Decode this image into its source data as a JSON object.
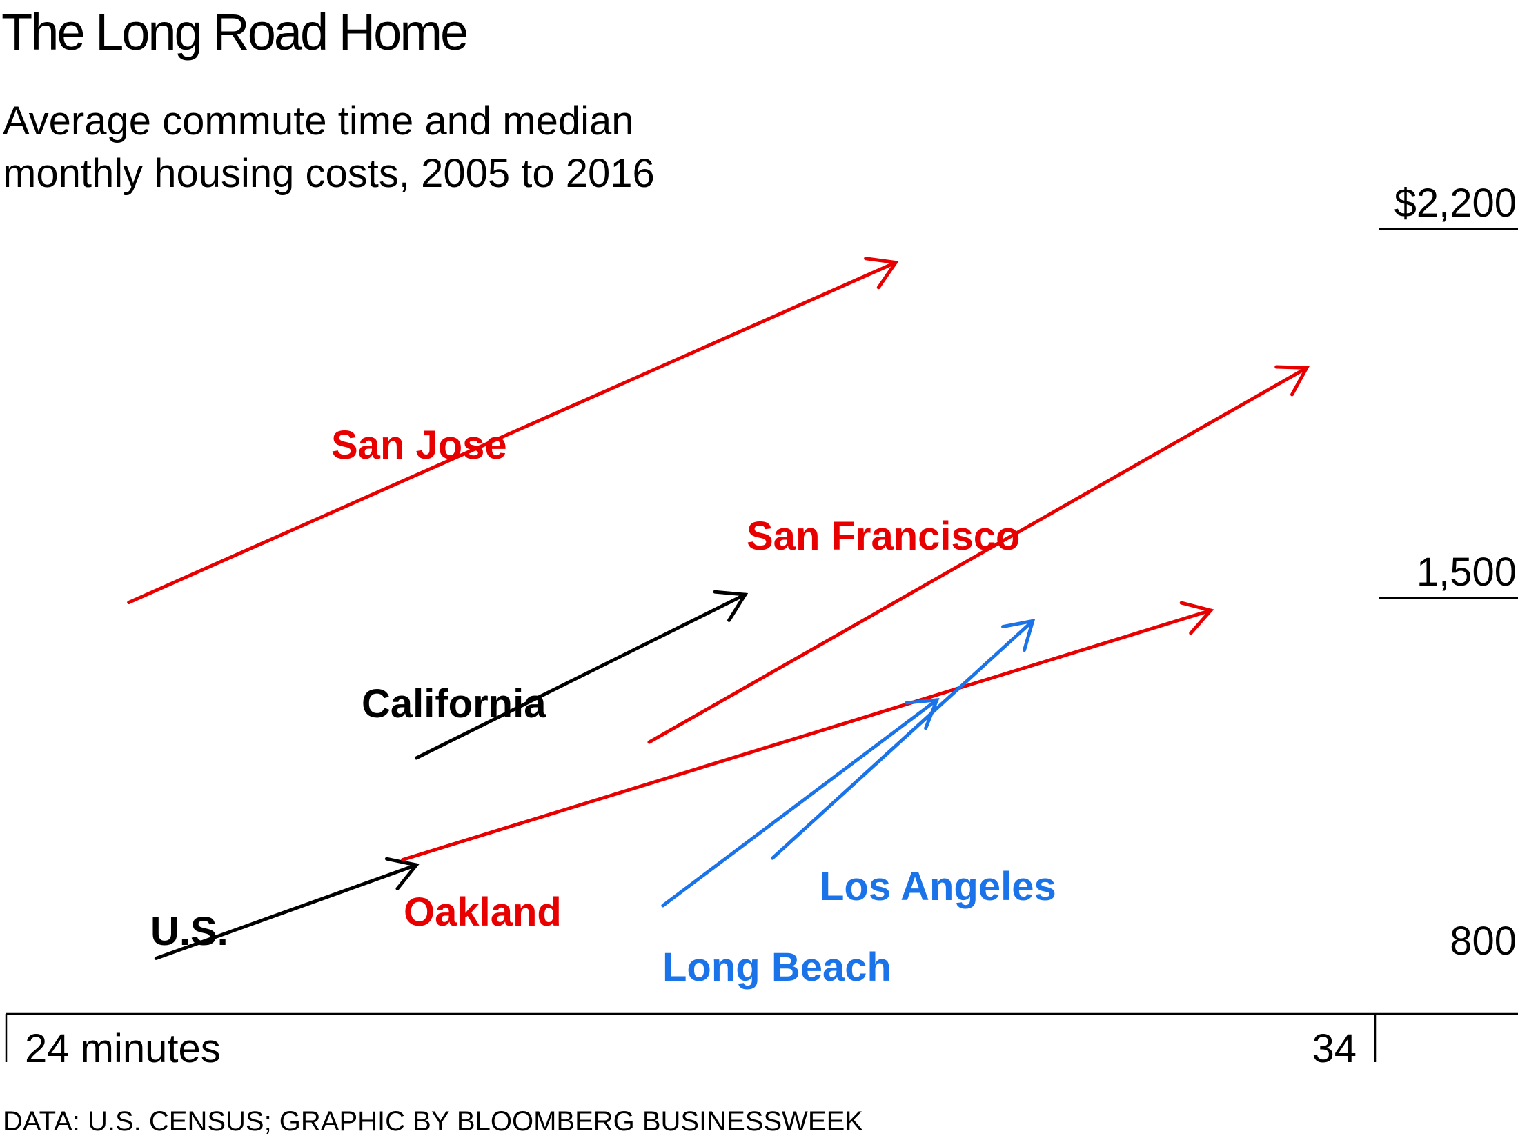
{
  "chart_data": {
    "type": "arrow-connected-scatter",
    "title": "The Long Road Home",
    "subtitle": "Average commute time and median monthly housing costs, 2005 to 2016",
    "source": "DATA: U.S. CENSUS; GRAPHIC BY BLOOMBERG BUSINESSWEEK",
    "x_axis": {
      "unit": "minutes",
      "min": 24,
      "max": 34,
      "ticks": [
        "24 minutes",
        "34"
      ]
    },
    "y_axis": {
      "unit": "dollars per month",
      "min": 800,
      "max": 2200,
      "ticks": [
        "800",
        "1,500",
        "$2,200"
      ]
    },
    "years": [
      "2005",
      "2016"
    ],
    "series": [
      {
        "name": "San Jose",
        "color": "#e80000",
        "start": [
          24.9,
          1515
        ],
        "end": [
          30.5,
          2160
        ]
      },
      {
        "name": "San Francisco",
        "color": "#e80000",
        "start": [
          28.7,
          1250
        ],
        "end": [
          33.5,
          1960
        ]
      },
      {
        "name": "California",
        "color": "#000000",
        "start": [
          27.0,
          1220
        ],
        "end": [
          29.4,
          1530
        ]
      },
      {
        "name": "U.S.",
        "color": "#000000",
        "start": [
          25.1,
          840
        ],
        "end": [
          27.0,
          1017
        ]
      },
      {
        "name": "Oakland",
        "color": "#e80000",
        "start": [
          26.9,
          1027
        ],
        "end": [
          32.8,
          1500
        ]
      },
      {
        "name": "Los Angeles",
        "color": "#1a73e8",
        "start": [
          29.6,
          1030
        ],
        "end": [
          31.5,
          1480
        ]
      },
      {
        "name": "Long Beach",
        "color": "#1a73e8",
        "start": [
          28.8,
          940
        ],
        "end": [
          30.8,
          1330
        ]
      }
    ]
  }
}
